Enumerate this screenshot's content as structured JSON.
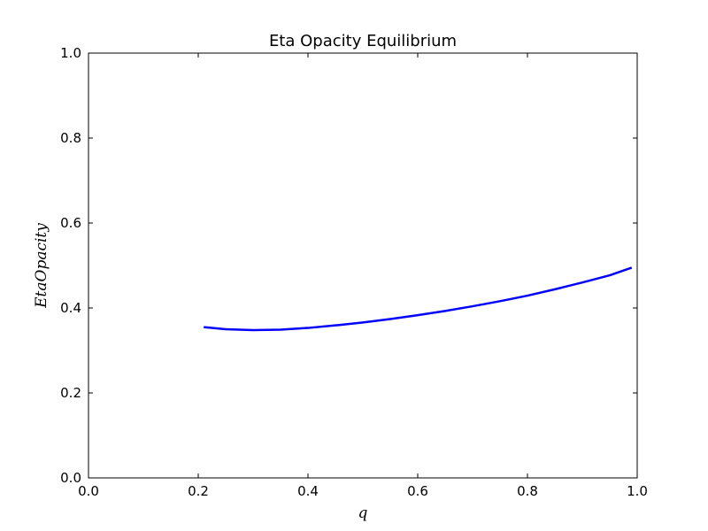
{
  "chart_data": {
    "type": "line",
    "title": "Eta Opacity Equilibrium",
    "xlabel": "q",
    "ylabel": "EtaOpacity",
    "xlim": [
      0.0,
      1.0
    ],
    "ylim": [
      0.0,
      1.0
    ],
    "xticks": [
      "0.0",
      "0.2",
      "0.4",
      "0.6",
      "0.8",
      "1.0"
    ],
    "yticks": [
      "0.0",
      "0.2",
      "0.4",
      "0.6",
      "0.8",
      "1.0"
    ],
    "grid": false,
    "series": [
      {
        "color": "#0000ff",
        "x": [
          0.21,
          0.25,
          0.3,
          0.35,
          0.4,
          0.45,
          0.5,
          0.55,
          0.6,
          0.65,
          0.7,
          0.75,
          0.8,
          0.85,
          0.9,
          0.95,
          0.99
        ],
        "y": [
          0.355,
          0.35,
          0.348,
          0.349,
          0.353,
          0.359,
          0.366,
          0.374,
          0.383,
          0.393,
          0.404,
          0.416,
          0.429,
          0.444,
          0.46,
          0.477,
          0.495
        ]
      }
    ]
  }
}
